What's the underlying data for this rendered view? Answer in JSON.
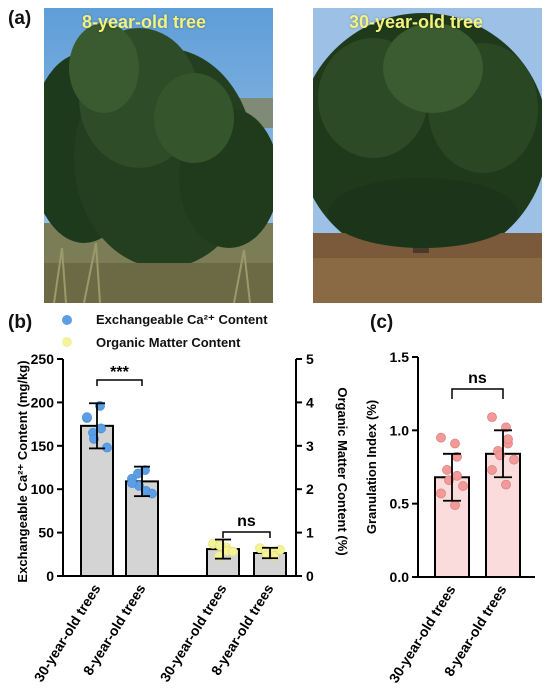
{
  "panels": {
    "a": "(a)",
    "b": "(b)",
    "c": "(c)"
  },
  "photos": {
    "left_label": "8-year-old tree",
    "right_label": "30-year-old tree"
  },
  "legend": {
    "items": [
      {
        "label": "Exchangeable Ca²⁺ Content",
        "color": "#5b9ee6"
      },
      {
        "label": "Organic Matter Content",
        "color": "#f4f39a"
      }
    ]
  },
  "chart_data": [
    {
      "type": "bar",
      "panel": "b",
      "categories": [
        "30-year-old trees",
        "8-year-old trees",
        "30-year-old trees",
        "8-year-old trees"
      ],
      "groups": [
        {
          "series": "Exchangeable Ca²⁺ Content",
          "axis": "left",
          "categories": [
            "30-year-old trees",
            "8-year-old trees"
          ],
          "values": [
            173,
            109
          ],
          "errors": [
            26,
            17
          ],
          "points": [
            [
              182,
              196,
              170,
              165,
              158,
              148,
              183
            ],
            [
              112,
              122,
              98,
              118,
              104,
              95,
              107
            ]
          ]
        },
        {
          "series": "Organic Matter Content",
          "axis": "right",
          "categories": [
            "30-year-old trees",
            "8-year-old trees"
          ],
          "values": [
            0.62,
            0.53
          ],
          "errors": [
            0.22,
            0.12
          ],
          "points": [
            [
              0.74,
              0.66,
              0.58,
              0.46,
              0.7,
              0.56
            ],
            [
              0.64,
              0.52,
              0.46,
              0.57,
              0.48,
              0.6
            ]
          ]
        }
      ],
      "ylabel_left": "Exchangeable Ca²⁺ Content (mg/kg)",
      "ylabel_right": "Organic Matter Content (%)",
      "ylim_left": [
        0,
        250
      ],
      "yticks_left": [
        "0",
        "50",
        "100",
        "150",
        "200",
        "250"
      ],
      "ylim_right": [
        0,
        5
      ],
      "yticks_right": [
        "0",
        "1",
        "2",
        "3",
        "4",
        "5"
      ],
      "significance": [
        "***",
        "ns"
      ],
      "bar_color": "#d4d4d4"
    },
    {
      "type": "bar",
      "panel": "c",
      "categories": [
        "30-year-old trees",
        "8-year-old trees"
      ],
      "values": [
        0.68,
        0.84
      ],
      "errors": [
        0.16,
        0.16
      ],
      "points": [
        [
          0.95,
          0.91,
          0.82,
          0.73,
          0.66,
          0.62,
          0.57,
          0.49,
          0.69
        ],
        [
          1.09,
          1.02,
          0.91,
          0.86,
          0.83,
          0.8,
          0.73,
          0.63,
          0.94
        ]
      ],
      "ylabel": "Granulation Index (%)",
      "ylim": [
        0,
        1.5
      ],
      "yticks": [
        "0.0",
        "0.5",
        "1.0",
        "1.5"
      ],
      "significance": "ns",
      "bar_color": "#fbdcdc",
      "point_color": "#f09a9a"
    }
  ]
}
